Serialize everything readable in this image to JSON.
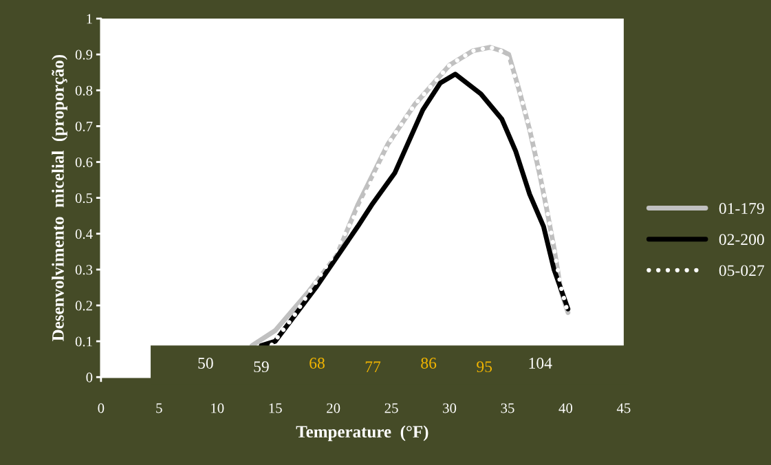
{
  "chart_data": {
    "type": "line",
    "xlabel": "Temperature  (°F)",
    "ylabel": "Desenvolvimento  micelial  (proporção)",
    "xlim": [
      0,
      45
    ],
    "xticks": [
      0,
      5,
      10,
      15,
      20,
      25,
      30,
      35,
      40,
      45
    ],
    "ylim": [
      0,
      1
    ],
    "yticks": [
      0,
      0.1,
      0.2,
      0.3,
      0.4,
      0.5,
      0.6,
      0.7,
      0.8,
      0.9,
      1
    ],
    "grid": false,
    "legend": "right",
    "marker": "none",
    "annotations": [
      "50",
      "59",
      "68",
      "77",
      "86",
      "95",
      "104"
    ],
    "series": [
      {
        "name": "01-179",
        "color": "#c0c0c0",
        "line_style": "solid",
        "x": [
          13,
          15,
          17.9,
          20.3,
          22.1,
          24.7,
          27,
          30,
          32,
          33.5,
          34.5,
          35.1,
          36,
          36.9,
          37.8,
          38.3,
          39,
          39.6,
          40.2
        ],
        "values": [
          0.088,
          0.13,
          0.24,
          0.34,
          0.48,
          0.65,
          0.76,
          0.87,
          0.91,
          0.92,
          0.91,
          0.9,
          0.8,
          0.69,
          0.56,
          0.48,
          0.36,
          0.24,
          0.18
        ]
      },
      {
        "name": "02-200",
        "color": "#000000",
        "line_style": "solid",
        "x": [
          13.8,
          15,
          18.5,
          22.1,
          23.3,
          25.3,
          27.7,
          29.2,
          30.5,
          32.7,
          34.5,
          35.7,
          36.9,
          38.1,
          39,
          40.2
        ],
        "values": [
          0.088,
          0.1,
          0.25,
          0.42,
          0.48,
          0.57,
          0.745,
          0.82,
          0.845,
          0.79,
          0.72,
          0.63,
          0.51,
          0.42,
          0.3,
          0.19
        ]
      },
      {
        "name": "05-027",
        "color": "#ffffff",
        "line_style": "dotted",
        "x": [
          14.7,
          16.6,
          17.6,
          18.8,
          20,
          21,
          22.5,
          24.7,
          27,
          30,
          32,
          33.5,
          34.4,
          35.2,
          36,
          37,
          37.9,
          38.5,
          39.1,
          39.6,
          40.1
        ],
        "values": [
          0.09,
          0.17,
          0.22,
          0.28,
          0.34,
          0.4,
          0.49,
          0.65,
          0.76,
          0.87,
          0.91,
          0.92,
          0.91,
          0.88,
          0.8,
          0.68,
          0.55,
          0.45,
          0.34,
          0.25,
          0.19
        ]
      }
    ]
  }
}
